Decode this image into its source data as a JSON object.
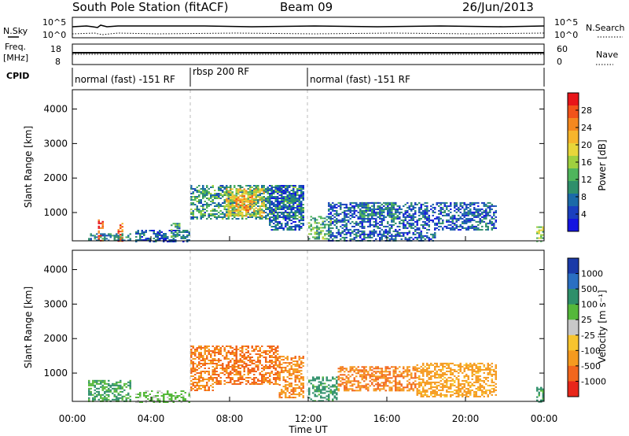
{
  "header": {
    "station": "South Pole Station (fitACF)",
    "beam": "Beam 09",
    "date": "26/Jun/2013"
  },
  "noise_panel": {
    "left_label": "N.Sky",
    "right_label": "N.Search",
    "left_ticks": [
      "10^5",
      "10^0"
    ],
    "right_ticks": [
      "10^5",
      "10^0"
    ]
  },
  "freq_panel": {
    "left_label_1": "Freq.",
    "left_label_2": "[MHz]",
    "right_label": "Nave",
    "left_ticks": [
      "18",
      "8"
    ],
    "right_ticks": [
      "60",
      "0"
    ]
  },
  "cpid": {
    "label": "CPID",
    "segments": [
      {
        "name": "normal (fast) -151 RF",
        "start_hour": 0,
        "end_hour": 6
      },
      {
        "name": "rbsp 200 RF",
        "start_hour": 6,
        "end_hour": 12
      },
      {
        "name": "normal (fast) -151 RF",
        "start_hour": 12,
        "end_hour": 24
      }
    ]
  },
  "power_colorbar": {
    "label": "Power [dB]",
    "ticks": [
      "28",
      "24",
      "20",
      "16",
      "12",
      "8",
      "4"
    ],
    "colors": [
      "#e8151a",
      "#f2531a",
      "#f5881f",
      "#f7b52b",
      "#e8d63a",
      "#9fd03f",
      "#4fb55c",
      "#2f8f6b",
      "#1b6aa8",
      "#1a3fbf",
      "#1414e0"
    ]
  },
  "velocity_colorbar": {
    "label": "Velocity [m s⁻¹]",
    "ticks": [
      "1000",
      "500",
      "100",
      "25",
      "-25",
      "-100",
      "-500",
      "-1000"
    ],
    "colors": [
      "#1a3aa8",
      "#2a6fc2",
      "#2e8f6a",
      "#55b83a",
      "#c8c8c8",
      "#f7c42e",
      "#f59a1f",
      "#f2661c",
      "#e8261a"
    ]
  },
  "x_axis": {
    "title": "Time UT",
    "ticks": [
      "00:00",
      "04:00",
      "08:00",
      "12:00",
      "16:00",
      "20:00",
      "00:00"
    ]
  },
  "chart_data": [
    {
      "type": "heatmap",
      "name": "Power",
      "xlabel": "Time UT",
      "ylabel": "Slant Range [km]",
      "xlim": [
        0,
        24
      ],
      "ylim": [
        180,
        4560
      ],
      "yticks": [
        1000,
        2000,
        3000,
        4000
      ],
      "color_scale": "Power [dB]",
      "regions": [
        {
          "x": [
            1.3,
            1.6
          ],
          "y": [
            180,
            800
          ],
          "value": 26
        },
        {
          "x": [
            2.3,
            2.6
          ],
          "y": [
            180,
            700
          ],
          "value": 24
        },
        {
          "x": [
            0.8,
            3.0
          ],
          "y": [
            180,
            400
          ],
          "value": 8
        },
        {
          "x": [
            3.2,
            6.0
          ],
          "y": [
            180,
            500
          ],
          "value": 6
        },
        {
          "x": [
            5.0,
            5.5
          ],
          "y": [
            300,
            700
          ],
          "value": 10
        },
        {
          "x": [
            6.0,
            11.8
          ],
          "y": [
            800,
            1800
          ],
          "value": 10
        },
        {
          "x": [
            7.8,
            9.8
          ],
          "y": [
            900,
            1700
          ],
          "value": 18
        },
        {
          "x": [
            8.2,
            9.2
          ],
          "y": [
            1000,
            1500
          ],
          "value": 22
        },
        {
          "x": [
            10.0,
            11.8
          ],
          "y": [
            500,
            1800
          ],
          "value": 6
        },
        {
          "x": [
            12.0,
            13.2
          ],
          "y": [
            250,
            900
          ],
          "value": 12
        },
        {
          "x": [
            13.0,
            18.5
          ],
          "y": [
            180,
            1300
          ],
          "value": 6
        },
        {
          "x": [
            14.5,
            16.5
          ],
          "y": [
            800,
            1300
          ],
          "value": 9
        },
        {
          "x": [
            18.5,
            21.6
          ],
          "y": [
            500,
            1300
          ],
          "value": 6
        },
        {
          "x": [
            23.6,
            24.0
          ],
          "y": [
            180,
            600
          ],
          "value": 14
        }
      ]
    },
    {
      "type": "heatmap",
      "name": "Velocity",
      "xlabel": "Time UT",
      "ylabel": "Slant Range [km]",
      "xlim": [
        0,
        24
      ],
      "ylim": [
        180,
        4560
      ],
      "yticks": [
        1000,
        2000,
        3000,
        4000
      ],
      "color_scale": "Velocity [m s⁻¹]",
      "regions": [
        {
          "x": [
            0.8,
            3.0
          ],
          "y": [
            180,
            800
          ],
          "value": 100
        },
        {
          "x": [
            3.2,
            6.0
          ],
          "y": [
            180,
            500
          ],
          "value": 50
        },
        {
          "x": [
            6.0,
            7.2
          ],
          "y": [
            500,
            1800
          ],
          "value": -500
        },
        {
          "x": [
            7.2,
            10.5
          ],
          "y": [
            700,
            1800
          ],
          "value": -600
        },
        {
          "x": [
            10.5,
            11.8
          ],
          "y": [
            300,
            1500
          ],
          "value": -400
        },
        {
          "x": [
            12.0,
            13.5
          ],
          "y": [
            200,
            900
          ],
          "value": 150
        },
        {
          "x": [
            13.5,
            17.5
          ],
          "y": [
            500,
            1200
          ],
          "value": -500
        },
        {
          "x": [
            17.5,
            21.6
          ],
          "y": [
            300,
            1300
          ],
          "value": -150
        },
        {
          "x": [
            23.6,
            24.0
          ],
          "y": [
            180,
            600
          ],
          "value": 150
        }
      ]
    }
  ]
}
